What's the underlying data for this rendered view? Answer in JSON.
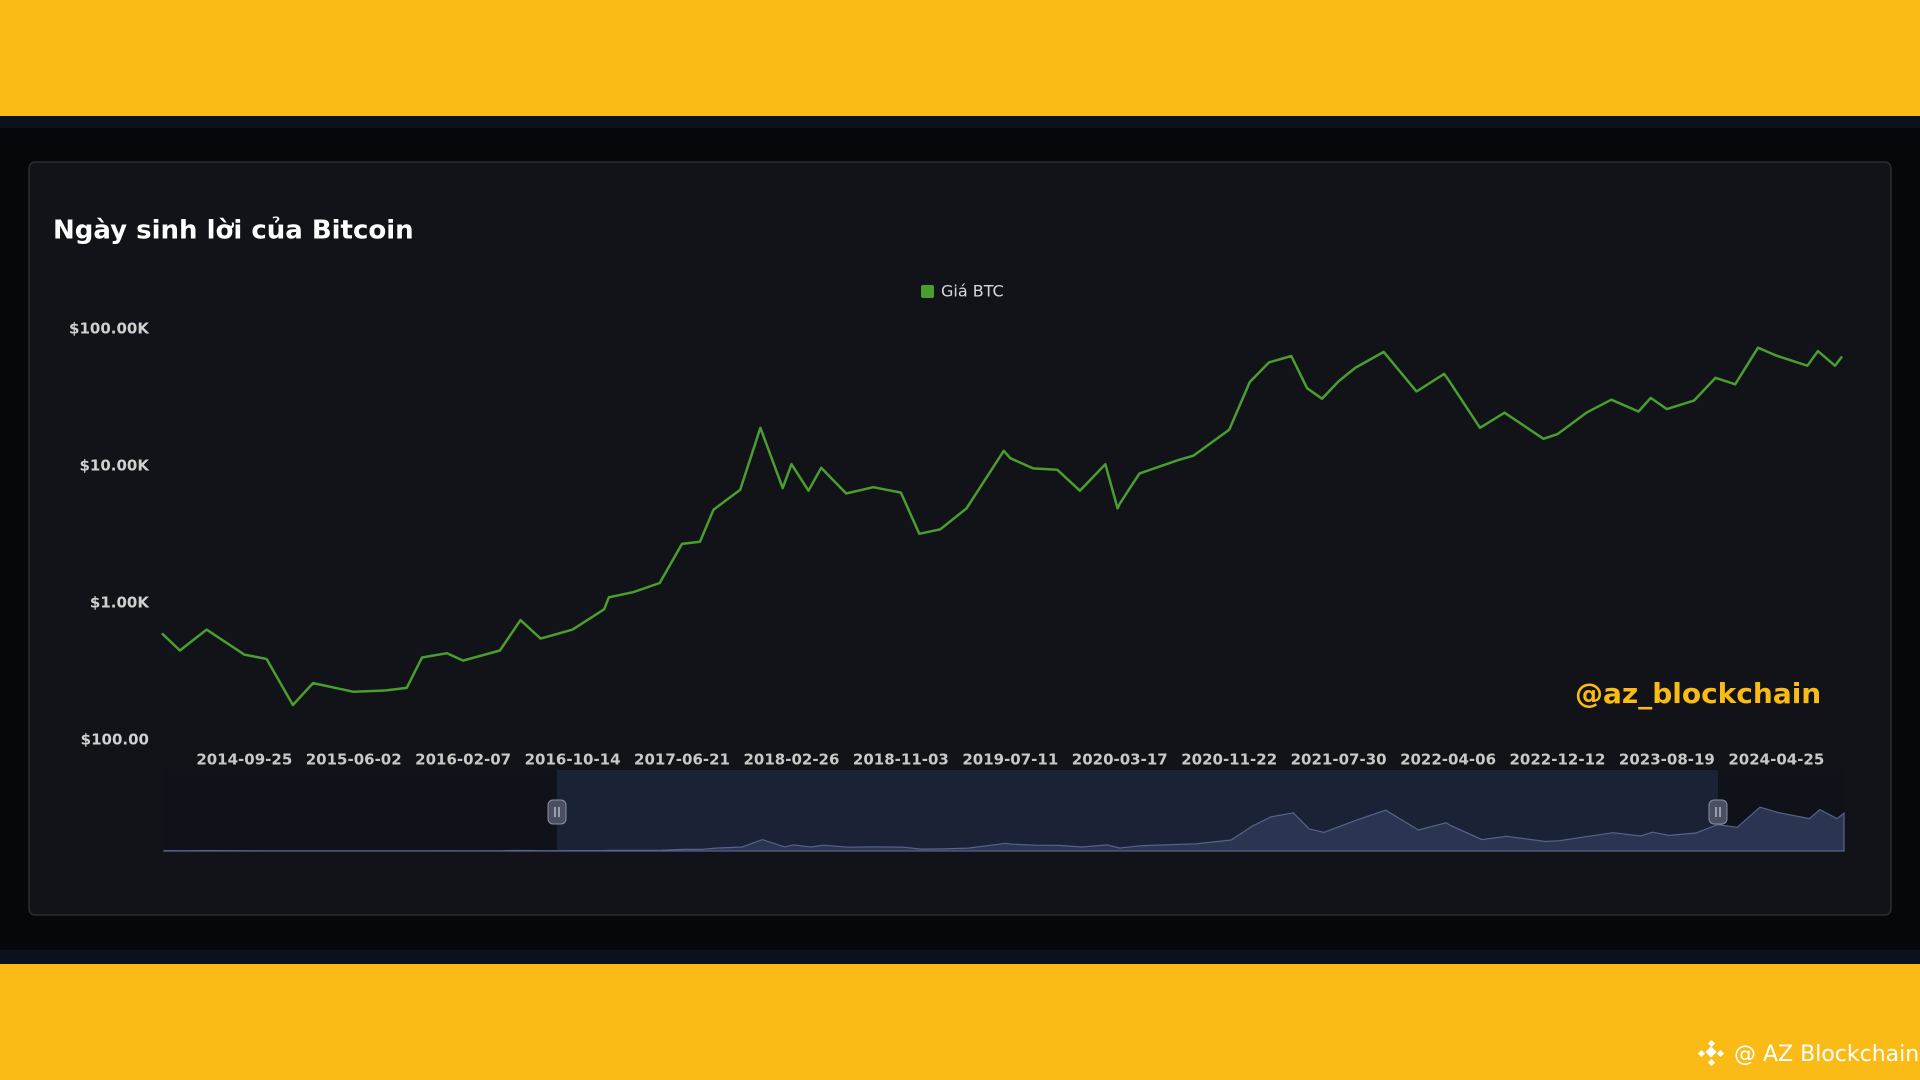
{
  "chart_data": {
    "type": "line",
    "title": "Ngày sinh lời của Bitcoin",
    "log_scale": true,
    "legend": "top",
    "x": [
      "2014-03-21",
      "2014-05-01",
      "2014-07-01",
      "2014-09-25",
      "2014-11-15",
      "2015-01-14",
      "2015-03-01",
      "2015-06-02",
      "2015-08-15",
      "2015-10-01",
      "2015-11-05",
      "2016-01-01",
      "2016-02-07",
      "2016-05-01",
      "2016-06-17",
      "2016-08-02",
      "2016-10-14",
      "2016-12-25",
      "2017-01-05",
      "2017-03-01",
      "2017-05-01",
      "2017-06-21",
      "2017-08-01",
      "2017-09-01",
      "2017-11-01",
      "2017-12-17",
      "2018-02-06",
      "2018-02-26",
      "2018-04-06",
      "2018-05-05",
      "2018-07-01",
      "2018-09-01",
      "2018-11-03",
      "2018-12-15",
      "2019-02-01",
      "2019-04-02",
      "2019-06-26",
      "2019-07-11",
      "2019-09-01",
      "2019-10-26",
      "2019-12-17",
      "2020-02-13",
      "2020-03-12",
      "2020-03-17",
      "2020-05-01",
      "2020-07-27",
      "2020-09-01",
      "2020-11-22",
      "2021-01-08",
      "2021-02-21",
      "2021-04-13",
      "2021-05-19",
      "2021-06-22",
      "2021-07-30",
      "2021-09-06",
      "2021-11-10",
      "2022-01-24",
      "2022-03-28",
      "2022-04-06",
      "2022-06-18",
      "2022-08-13",
      "2022-11-10",
      "2022-12-12",
      "2023-02-16",
      "2023-04-14",
      "2023-06-15",
      "2023-07-13",
      "2023-08-19",
      "2023-10-20",
      "2023-12-08",
      "2024-01-22",
      "2024-03-14",
      "2024-04-25",
      "2024-07-05",
      "2024-07-29",
      "2024-09-06",
      "2024-09-22"
    ],
    "series": [
      {
        "name": "Giá BTC",
        "color": "#4a9e2f",
        "values": [
          600,
          450,
          640,
          420,
          390,
          180,
          260,
          225,
          230,
          240,
          400,
          430,
          380,
          450,
          750,
          550,
          640,
          900,
          1100,
          1200,
          1400,
          2700,
          2800,
          4800,
          6700,
          19000,
          6900,
          10300,
          6600,
          9700,
          6300,
          7000,
          6400,
          3200,
          3450,
          4900,
          12900,
          11400,
          9600,
          9400,
          6600,
          10300,
          4900,
          5300,
          8800,
          11000,
          11900,
          18400,
          41000,
          57000,
          63500,
          37000,
          31000,
          41500,
          52000,
          68000,
          35000,
          47000,
          43000,
          19000,
          24500,
          15800,
          17100,
          24500,
          30500,
          25000,
          31400,
          26000,
          30000,
          44000,
          39500,
          73000,
          64000,
          54000,
          69000,
          54000,
          63000
        ]
      }
    ],
    "xlim": [
      "2014-03-21",
      "2024-09-22"
    ],
    "xticks": [
      "2014-09-25",
      "2015-06-02",
      "2016-02-07",
      "2016-10-14",
      "2017-06-21",
      "2018-02-26",
      "2018-11-03",
      "2019-07-11",
      "2020-03-17",
      "2020-11-22",
      "2021-07-30",
      "2022-04-06",
      "2022-12-12",
      "2023-08-19",
      "2024-04-25"
    ],
    "ylim": [
      100,
      100000
    ],
    "yticks": [
      {
        "value": 100,
        "label": "$100.00"
      },
      {
        "value": 1000,
        "label": "$1.00K"
      },
      {
        "value": 10000,
        "label": "$10.00K"
      },
      {
        "value": 100000,
        "label": "$100.00K"
      }
    ],
    "watermark": "@az_blockchain"
  },
  "footer": {
    "text": "@ AZ Blockchain"
  }
}
